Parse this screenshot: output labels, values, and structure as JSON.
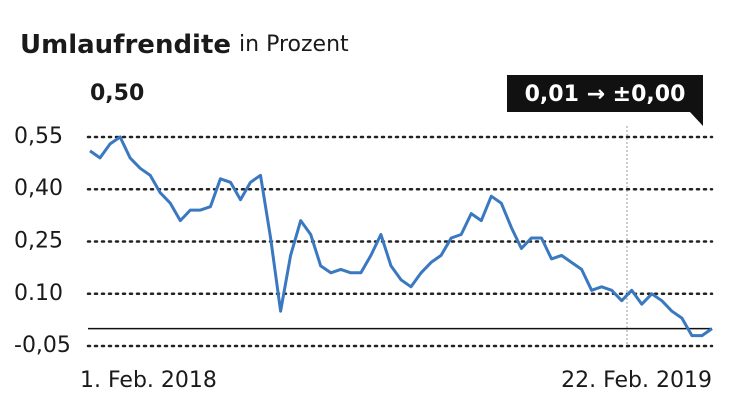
{
  "chart_data": {
    "type": "line",
    "title": "Umlaufrendite",
    "subtitle": "in Prozent",
    "annotations": [
      "0,50",
      "0,01 → ±0,00"
    ],
    "categories": [
      "1. Feb. 2018",
      null,
      null,
      null,
      null,
      null,
      null,
      null,
      null,
      null,
      null,
      null,
      null,
      null,
      null,
      null,
      null,
      null,
      null,
      null,
      null,
      null,
      null,
      null,
      null,
      null,
      null,
      null,
      null,
      null,
      null,
      null,
      null,
      null,
      null,
      null,
      null,
      null,
      null,
      null,
      null,
      null,
      null,
      null,
      null,
      null,
      null,
      null,
      null,
      null,
      null,
      null,
      null,
      null,
      null,
      null,
      null,
      null,
      null,
      null,
      null,
      null,
      "22. Feb. 2019"
    ],
    "series": [
      {
        "color": "#3a78c0",
        "values": [
          0.51,
          0.49,
          0.53,
          0.55,
          0.49,
          0.46,
          0.44,
          0.39,
          0.36,
          0.31,
          0.34,
          0.34,
          0.35,
          0.43,
          0.42,
          0.37,
          0.42,
          0.44,
          0.26,
          0.05,
          0.21,
          0.31,
          0.27,
          0.18,
          0.16,
          0.17,
          0.16,
          0.16,
          0.21,
          0.27,
          0.18,
          0.14,
          0.12,
          0.16,
          0.19,
          0.21,
          0.26,
          0.27,
          0.33,
          0.31,
          0.38,
          0.36,
          0.29,
          0.23,
          0.26,
          0.26,
          0.2,
          0.21,
          0.19,
          0.17,
          0.11,
          0.12,
          0.11,
          0.08,
          0.11,
          0.07,
          0.1,
          0.08,
          0.05,
          0.03,
          -0.02,
          -0.02,
          0.0
        ]
      }
    ],
    "ylim": [
      -0.06,
      0.57
    ],
    "yticks": [
      {
        "value": 0.55,
        "label": "0,55"
      },
      {
        "value": 0.4,
        "label": "0,40"
      },
      {
        "value": 0.25,
        "label": "0,25"
      },
      {
        "value": 0.1,
        "label": "0.10"
      },
      {
        "value": -0.05,
        "label": "-0,05"
      }
    ],
    "reference_line": 0,
    "grid": true
  }
}
